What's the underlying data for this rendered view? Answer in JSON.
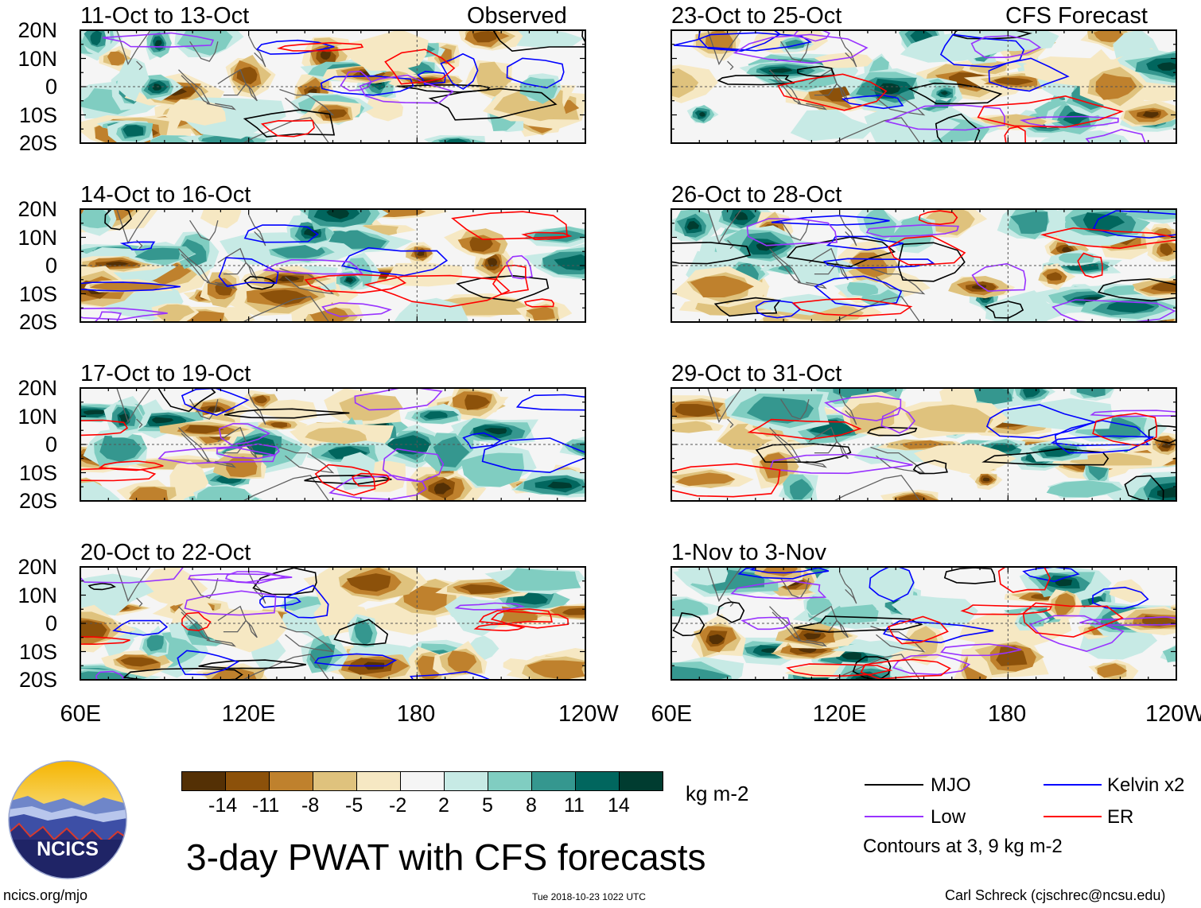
{
  "chart_data": {
    "type": "heatmap",
    "title": "3-day PWAT with CFS forecasts",
    "colorbar": {
      "unit_label": "kg m-2",
      "tick_labels": [
        "-14",
        "-11",
        "-8",
        "-5",
        "-2",
        "2",
        "5",
        "8",
        "11",
        "14"
      ],
      "colors": [
        "#543005",
        "#8c510a",
        "#bf812d",
        "#dfc27d",
        "#f6e8c3",
        "#f5f5f5",
        "#c7eae5",
        "#80cdc1",
        "#35978f",
        "#01665e",
        "#003c30"
      ]
    },
    "lat_ticks": [
      "20N",
      "10N",
      "0",
      "10S",
      "20S"
    ],
    "lat_range": [
      -20,
      20
    ],
    "lon_ticks": [
      "60E",
      "120E",
      "180",
      "120W"
    ],
    "lon_range": [
      60,
      240
    ],
    "columns": [
      {
        "label": "Observed",
        "panels": [
          "11-Oct to 13-Oct",
          "14-Oct to 16-Oct",
          "17-Oct to 19-Oct",
          "20-Oct to 22-Oct"
        ]
      },
      {
        "label": "CFS Forecast",
        "panels": [
          "23-Oct to 25-Oct",
          "26-Oct to 28-Oct",
          "29-Oct to 31-Oct",
          "1-Nov to 3-Nov"
        ]
      }
    ],
    "legend": {
      "items": [
        {
          "label": "MJO",
          "color": "#000000"
        },
        {
          "label": "Kelvin x2",
          "color": "#0000ff"
        },
        {
          "label": "Low",
          "color": "#9933ff"
        },
        {
          "label": "ER",
          "color": "#ff0000"
        }
      ],
      "note": "Contours at 3, 9 kg m-2"
    }
  },
  "logo": {
    "text": "NCICS"
  },
  "footer": {
    "left": "ncics.org/mjo",
    "middle": "Tue 2018-10-23 1022 UTC",
    "right": "Carl Schreck (cjschrec@ncsu.edu)"
  }
}
